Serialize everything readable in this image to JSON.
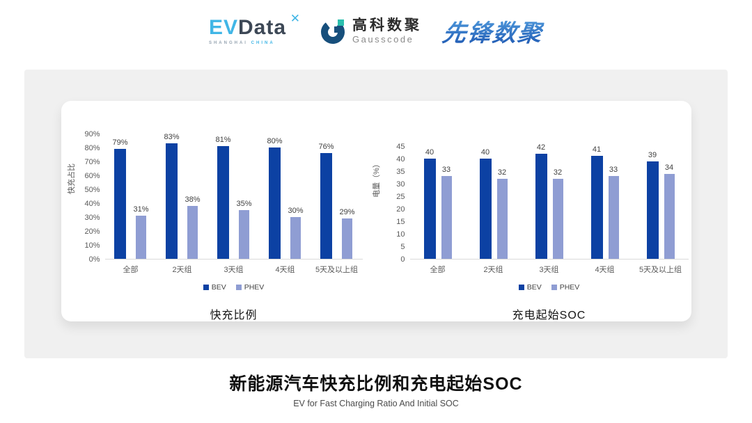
{
  "header": {
    "evdata": {
      "ev": "EV",
      "data": "Data",
      "star": "✕",
      "sub_left": "SHANGHAI",
      "sub_right": "CHINA"
    },
    "gausscode": {
      "cn": "高科数聚",
      "en": "Gausscode"
    },
    "xianfeng": {
      "text": "先锋数聚"
    }
  },
  "colors": {
    "bev": "#0c41a3",
    "phev": "#8f9dd3",
    "axis_text": "#595959",
    "axis_line": "#d9d9d9",
    "panel_bg": "#f0f0f0",
    "evdata_blue": "#41b6e6",
    "gauss_navy": "#174f7c",
    "gauss_teal": "#2bbfae"
  },
  "chart_data": [
    {
      "type": "bar",
      "title": "快充比例",
      "ylabel": "快充占比",
      "xlabel": "",
      "categories": [
        "全部",
        "2天组",
        "3天组",
        "4天组",
        "5天及以上组"
      ],
      "series": [
        {
          "name": "BEV",
          "color": "#0c41a3",
          "values": [
            79,
            83,
            81,
            80,
            76
          ]
        },
        {
          "name": "PHEV",
          "color": "#8f9dd3",
          "values": [
            31,
            38,
            35,
            30,
            29
          ]
        }
      ],
      "ylim": [
        0,
        90
      ],
      "yticks": [
        "0%",
        "10%",
        "20%",
        "30%",
        "40%",
        "50%",
        "60%",
        "70%",
        "80%",
        "90%"
      ],
      "value_suffix": "%",
      "grid": false,
      "legend_position": "bottom"
    },
    {
      "type": "bar",
      "title": "充电起始SOC",
      "ylabel": "电量（%）",
      "xlabel": "",
      "categories": [
        "全部",
        "2天组",
        "3天组",
        "4天组",
        "5天及以上组"
      ],
      "series": [
        {
          "name": "BEV",
          "color": "#0c41a3",
          "values": [
            40,
            40,
            42,
            41,
            39
          ]
        },
        {
          "name": "PHEV",
          "color": "#8f9dd3",
          "values": [
            33,
            32,
            32,
            33,
            34
          ]
        }
      ],
      "ylim": [
        0,
        45
      ],
      "yticks": [
        "0",
        "5",
        "10",
        "15",
        "20",
        "25",
        "30",
        "35",
        "40",
        "45"
      ],
      "value_suffix": "",
      "grid": false,
      "legend_position": "bottom"
    }
  ],
  "footer": {
    "title": "新能源汽车快充比例和充电起始SOC",
    "subtitle": "EV for Fast Charging Ratio And Initial SOC"
  }
}
